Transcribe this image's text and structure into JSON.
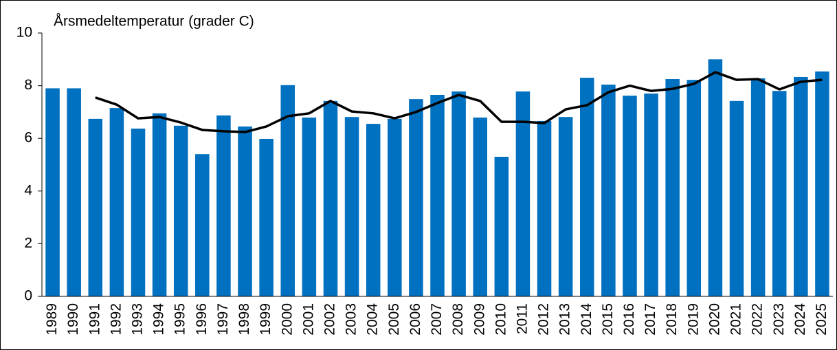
{
  "chart_data": {
    "type": "bar",
    "title": "Årsmedeltemperatur (grader C)",
    "categories": [
      "1989",
      "1990",
      "1991",
      "1992",
      "1993",
      "1994",
      "1995",
      "1996",
      "1997",
      "1998",
      "1999",
      "2000",
      "2001",
      "2002",
      "2003",
      "2004",
      "2005",
      "2006",
      "2007",
      "2008",
      "2009",
      "2010",
      "2011",
      "2012",
      "2013",
      "2014",
      "2015",
      "2016",
      "2017",
      "2018",
      "2019",
      "2020",
      "2021",
      "2022",
      "2023",
      "2024",
      "2025"
    ],
    "series": [
      {
        "type": "bar",
        "color": "#0070c0",
        "values": [
          7.9,
          7.9,
          6.74,
          7.15,
          6.37,
          6.95,
          6.48,
          5.4,
          6.87,
          6.45,
          5.98,
          8.02,
          6.79,
          7.42,
          6.81,
          6.55,
          6.74,
          7.49,
          7.65,
          7.78,
          6.79,
          5.3,
          7.78,
          6.66,
          6.81,
          8.3,
          8.04,
          7.62,
          7.7,
          8.25,
          8.22,
          9.0,
          7.42,
          8.28,
          7.8,
          8.33,
          8.54
        ]
      },
      {
        "type": "line",
        "color": "#000000",
        "values": [
          null,
          null,
          7.55,
          7.28,
          6.76,
          6.81,
          6.6,
          6.32,
          6.27,
          6.24,
          6.45,
          6.84,
          6.95,
          7.42,
          7.02,
          6.95,
          6.76,
          7.0,
          7.34,
          7.65,
          7.42,
          6.63,
          6.63,
          6.58,
          7.1,
          7.26,
          7.75,
          8.0,
          7.8,
          7.88,
          8.07,
          8.51,
          8.22,
          8.25,
          7.86,
          8.15,
          8.22
        ]
      }
    ],
    "ylim": [
      0,
      10
    ],
    "yticks": [
      0,
      2,
      4,
      6,
      8,
      10
    ],
    "grid": false
  }
}
